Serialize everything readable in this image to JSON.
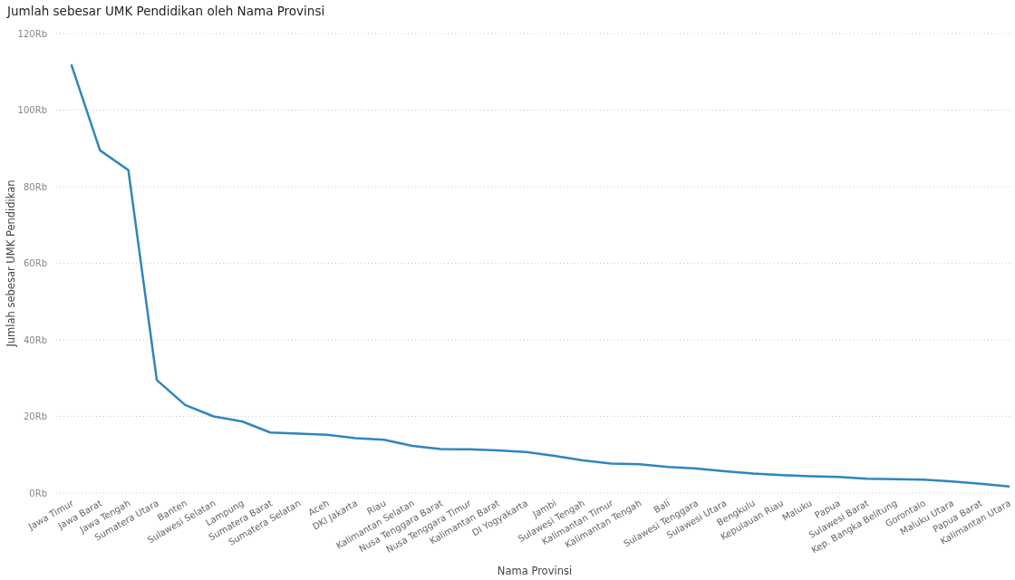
{
  "chart_data": {
    "type": "line",
    "title": "Jumlah sebesar UMK Pendidikan oleh Nama Provinsi",
    "xlabel": "Nama Provinsi",
    "ylabel": "Jumlah sebesar UMK Pendidikan",
    "categories": [
      "Jawa Timur",
      "Jawa Barat",
      "Jawa Tengah",
      "Sumatera Utara",
      "Banten",
      "Sulawesi Selatan",
      "Lampung",
      "Sumatera Barat",
      "Sumatera Selatan",
      "Aceh",
      "DKI Jakarta",
      "Riau",
      "Kalimantan Selatan",
      "Nusa Tenggara Barat",
      "Nusa Tenggara Timur",
      "Kalimantan Barat",
      "DI Yogyakarta",
      "Jambi",
      "Sulawesi Tengah",
      "Kalimantan Timur",
      "Kalimantan Tengah",
      "Bali",
      "Sulawesi Tenggara",
      "Sulawesi Utara",
      "Bengkulu",
      "Kepulauan Riau",
      "Maluku",
      "Papua",
      "Sulawesi Barat",
      "Kep. Bangka Belitung",
      "Gorontalo",
      "Maluku Utara",
      "Papua Barat",
      "Kalimantan Utara"
    ],
    "values": [
      111.7,
      89.5,
      84.3,
      29.5,
      23.0,
      20.0,
      18.7,
      15.8,
      15.5,
      15.2,
      14.3,
      13.9,
      12.3,
      11.5,
      11.4,
      11.1,
      10.7,
      9.7,
      8.5,
      7.7,
      7.5,
      6.8,
      6.4,
      5.7,
      5.1,
      4.7,
      4.4,
      4.2,
      3.7,
      3.6,
      3.5,
      3.0,
      2.4,
      1.7
    ],
    "color": "#2e86bf",
    "line_style": "solid",
    "ylim": [
      0,
      120
    ],
    "yticks": [
      {
        "value": 0,
        "label": "0Rb"
      },
      {
        "value": 20,
        "label": "20Rb"
      },
      {
        "value": 40,
        "label": "40Rb"
      },
      {
        "value": 60,
        "label": "60Rb"
      },
      {
        "value": 80,
        "label": "80Rb"
      },
      {
        "value": 100,
        "label": "100Rb"
      },
      {
        "value": 120,
        "label": "120Rb"
      }
    ],
    "grid": "y"
  }
}
